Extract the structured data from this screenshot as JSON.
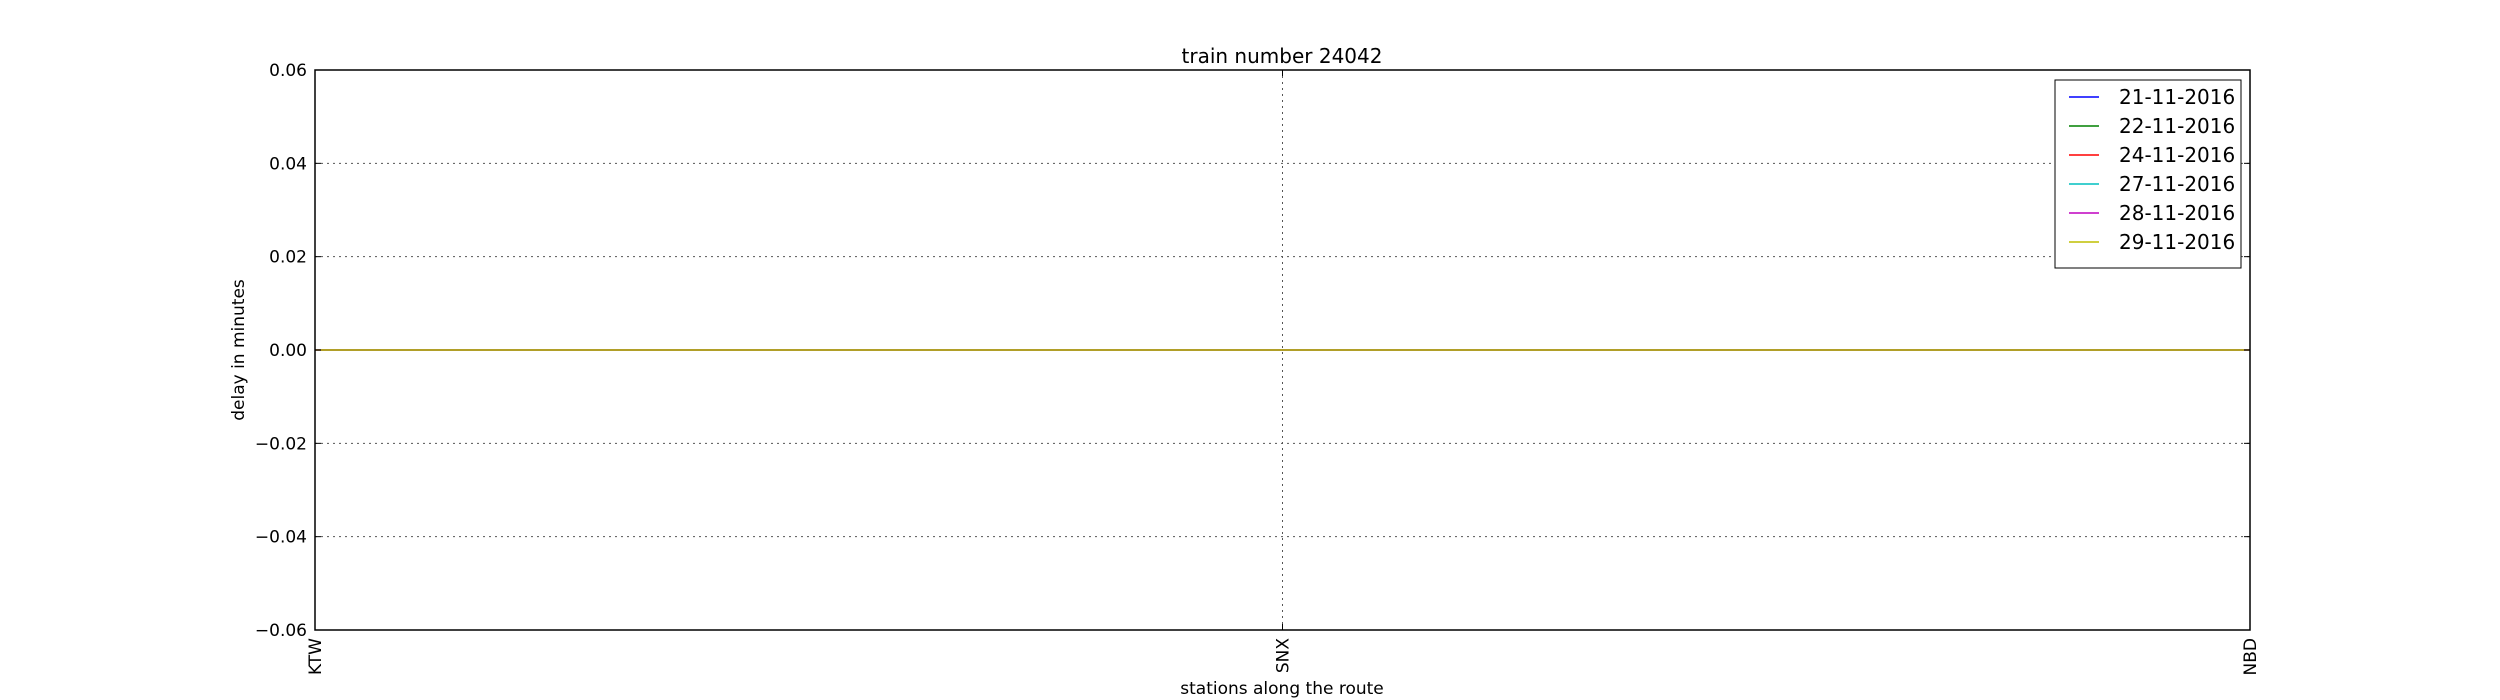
{
  "chart_data": {
    "type": "line",
    "title": "train number 24042",
    "xlabel": "stations along the route",
    "ylabel": "delay in minutes",
    "categories": [
      "KTW",
      "SNX",
      "NBD"
    ],
    "ylim": [
      -0.06,
      0.06
    ],
    "yticks": [
      -0.06,
      -0.04,
      -0.02,
      0.0,
      0.02,
      0.04,
      0.06
    ],
    "ytick_labels": [
      "−0.06",
      "−0.04",
      "−0.02",
      "0.00",
      "0.02",
      "0.04",
      "0.06"
    ],
    "grid": true,
    "legend_position": "top-right",
    "series": [
      {
        "name": "21-11-2016",
        "color": "#0000ff",
        "values": [
          0,
          0,
          0
        ]
      },
      {
        "name": "22-11-2016",
        "color": "#008000",
        "values": [
          0,
          0,
          0
        ]
      },
      {
        "name": "24-11-2016",
        "color": "#ff0000",
        "values": [
          0,
          0,
          0
        ]
      },
      {
        "name": "27-11-2016",
        "color": "#00bfbf",
        "values": [
          0,
          0,
          0
        ]
      },
      {
        "name": "28-11-2016",
        "color": "#bf00bf",
        "values": [
          0,
          0,
          0
        ]
      },
      {
        "name": "29-11-2016",
        "color": "#bfbf00",
        "values": [
          0,
          0,
          0
        ]
      }
    ]
  }
}
